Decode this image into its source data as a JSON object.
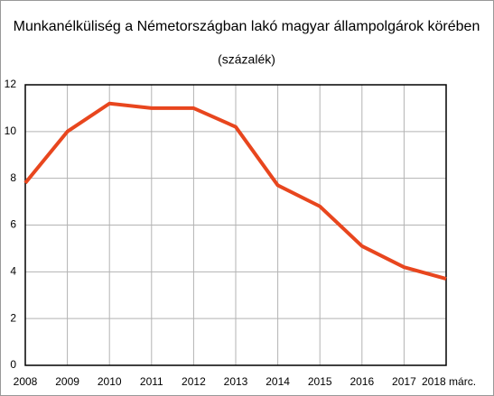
{
  "chart_data": {
    "type": "line",
    "title": "Munkanélküliség a Németországban lakó magyar állampolgárok körében",
    "subtitle": "(százalék)",
    "categories": [
      "2008",
      "2009",
      "2010",
      "2011",
      "2012",
      "2013",
      "2014",
      "2015",
      "2016",
      "2017",
      "2018 márc."
    ],
    "values": [
      7.8,
      10.0,
      11.2,
      11.0,
      11.0,
      10.2,
      7.7,
      6.8,
      5.1,
      4.2,
      3.7
    ],
    "color": "#e8461e",
    "ylim": [
      0,
      12
    ],
    "yticks": [
      0,
      2,
      4,
      6,
      8,
      10,
      12
    ],
    "grid": true
  }
}
